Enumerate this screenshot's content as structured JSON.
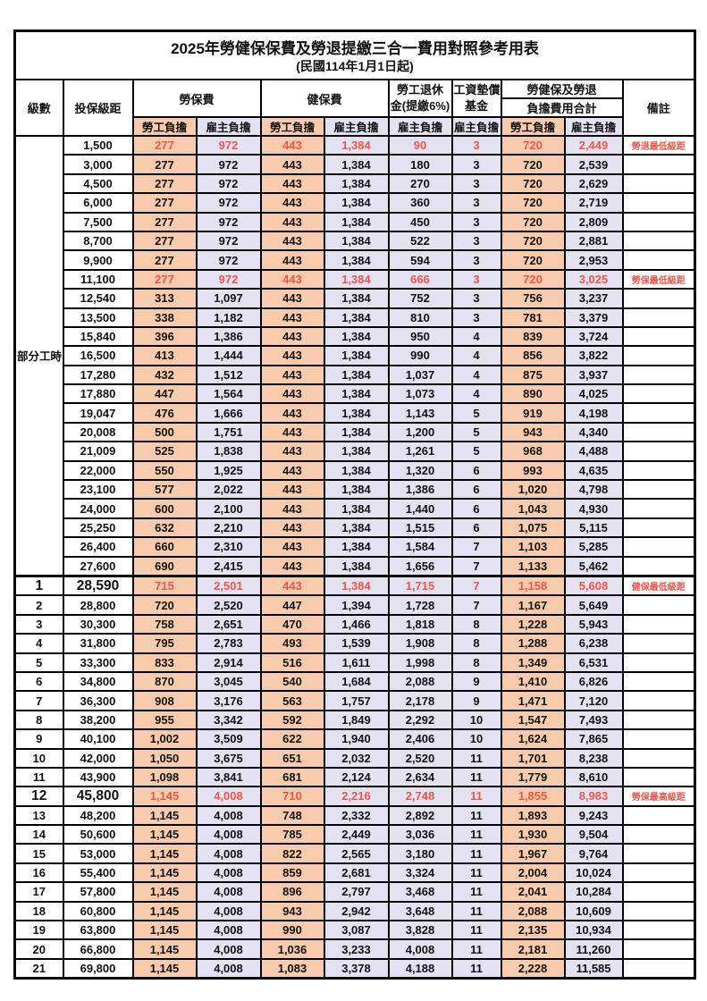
{
  "title": "2025年勞健保保費及勞退提繳三合一費用對照參考用表",
  "subtitle": "(民國114年1月1日起)",
  "colors": {
    "employee_bg": "#F8CBAD",
    "employer_bg": "#E4E2F2",
    "highlight_text": "#F25549",
    "border": "#000000"
  },
  "header": {
    "level": "級數",
    "bracket": "投保級距",
    "labor_insurance": "勞保費",
    "health_insurance": "健保費",
    "pension_line1": "勞工退休",
    "pension_line2": "金(提繳6%)",
    "wage_fund_line1": "工資墊償",
    "wage_fund_line2": "基金",
    "total_line1": "勞健保及勞退",
    "total_line2": "負擔費用合計",
    "employee_share": "勞工負擔",
    "employer_share": "雇主負擔",
    "remark": "備註"
  },
  "part_time": {
    "label": "部分工時",
    "span": 23
  },
  "rows": [
    {
      "level": "",
      "bracket": "1,500",
      "labor_emp": "277",
      "labor_er": "972",
      "health_emp": "443",
      "health_er": "1,384",
      "pension": "90",
      "wage_fund": "3",
      "total_emp": "720",
      "total_er": "2,449",
      "remark": "勞退最低級距",
      "red": true,
      "big": false,
      "sep": false
    },
    {
      "level": "",
      "bracket": "3,000",
      "labor_emp": "277",
      "labor_er": "972",
      "health_emp": "443",
      "health_er": "1,384",
      "pension": "180",
      "wage_fund": "3",
      "total_emp": "720",
      "total_er": "2,539",
      "remark": "",
      "red": false,
      "big": false,
      "sep": false
    },
    {
      "level": "",
      "bracket": "4,500",
      "labor_emp": "277",
      "labor_er": "972",
      "health_emp": "443",
      "health_er": "1,384",
      "pension": "270",
      "wage_fund": "3",
      "total_emp": "720",
      "total_er": "2,629",
      "remark": "",
      "red": false,
      "big": false,
      "sep": false
    },
    {
      "level": "",
      "bracket": "6,000",
      "labor_emp": "277",
      "labor_er": "972",
      "health_emp": "443",
      "health_er": "1,384",
      "pension": "360",
      "wage_fund": "3",
      "total_emp": "720",
      "total_er": "2,719",
      "remark": "",
      "red": false,
      "big": false,
      "sep": false
    },
    {
      "level": "",
      "bracket": "7,500",
      "labor_emp": "277",
      "labor_er": "972",
      "health_emp": "443",
      "health_er": "1,384",
      "pension": "450",
      "wage_fund": "3",
      "total_emp": "720",
      "total_er": "2,809",
      "remark": "",
      "red": false,
      "big": false,
      "sep": false
    },
    {
      "level": "",
      "bracket": "8,700",
      "labor_emp": "277",
      "labor_er": "972",
      "health_emp": "443",
      "health_er": "1,384",
      "pension": "522",
      "wage_fund": "3",
      "total_emp": "720",
      "total_er": "2,881",
      "remark": "",
      "red": false,
      "big": false,
      "sep": false
    },
    {
      "level": "",
      "bracket": "9,900",
      "labor_emp": "277",
      "labor_er": "972",
      "health_emp": "443",
      "health_er": "1,384",
      "pension": "594",
      "wage_fund": "3",
      "total_emp": "720",
      "total_er": "2,953",
      "remark": "",
      "red": false,
      "big": false,
      "sep": false
    },
    {
      "level": "",
      "bracket": "11,100",
      "labor_emp": "277",
      "labor_er": "972",
      "health_emp": "443",
      "health_er": "1,384",
      "pension": "666",
      "wage_fund": "3",
      "total_emp": "720",
      "total_er": "3,025",
      "remark": "勞保最低級距",
      "red": true,
      "big": false,
      "sep": false
    },
    {
      "level": "",
      "bracket": "12,540",
      "labor_emp": "313",
      "labor_er": "1,097",
      "health_emp": "443",
      "health_er": "1,384",
      "pension": "752",
      "wage_fund": "3",
      "total_emp": "756",
      "total_er": "3,237",
      "remark": "",
      "red": false,
      "big": false,
      "sep": false
    },
    {
      "level": "",
      "bracket": "13,500",
      "labor_emp": "338",
      "labor_er": "1,182",
      "health_emp": "443",
      "health_er": "1,384",
      "pension": "810",
      "wage_fund": "3",
      "total_emp": "781",
      "total_er": "3,379",
      "remark": "",
      "red": false,
      "big": false,
      "sep": false
    },
    {
      "level": "",
      "bracket": "15,840",
      "labor_emp": "396",
      "labor_er": "1,386",
      "health_emp": "443",
      "health_er": "1,384",
      "pension": "950",
      "wage_fund": "4",
      "total_emp": "839",
      "total_er": "3,724",
      "remark": "",
      "red": false,
      "big": false,
      "sep": false
    },
    {
      "level": "",
      "bracket": "16,500",
      "labor_emp": "413",
      "labor_er": "1,444",
      "health_emp": "443",
      "health_er": "1,384",
      "pension": "990",
      "wage_fund": "4",
      "total_emp": "856",
      "total_er": "3,822",
      "remark": "",
      "red": false,
      "big": false,
      "sep": false
    },
    {
      "level": "",
      "bracket": "17,280",
      "labor_emp": "432",
      "labor_er": "1,512",
      "health_emp": "443",
      "health_er": "1,384",
      "pension": "1,037",
      "wage_fund": "4",
      "total_emp": "875",
      "total_er": "3,937",
      "remark": "",
      "red": false,
      "big": false,
      "sep": false
    },
    {
      "level": "",
      "bracket": "17,880",
      "labor_emp": "447",
      "labor_er": "1,564",
      "health_emp": "443",
      "health_er": "1,384",
      "pension": "1,073",
      "wage_fund": "4",
      "total_emp": "890",
      "total_er": "4,025",
      "remark": "",
      "red": false,
      "big": false,
      "sep": false
    },
    {
      "level": "",
      "bracket": "19,047",
      "labor_emp": "476",
      "labor_er": "1,666",
      "health_emp": "443",
      "health_er": "1,384",
      "pension": "1,143",
      "wage_fund": "5",
      "total_emp": "919",
      "total_er": "4,198",
      "remark": "",
      "red": false,
      "big": false,
      "sep": false
    },
    {
      "level": "",
      "bracket": "20,008",
      "labor_emp": "500",
      "labor_er": "1,751",
      "health_emp": "443",
      "health_er": "1,384",
      "pension": "1,200",
      "wage_fund": "5",
      "total_emp": "943",
      "total_er": "4,340",
      "remark": "",
      "red": false,
      "big": false,
      "sep": false
    },
    {
      "level": "",
      "bracket": "21,009",
      "labor_emp": "525",
      "labor_er": "1,838",
      "health_emp": "443",
      "health_er": "1,384",
      "pension": "1,261",
      "wage_fund": "5",
      "total_emp": "968",
      "total_er": "4,488",
      "remark": "",
      "red": false,
      "big": false,
      "sep": false
    },
    {
      "level": "",
      "bracket": "22,000",
      "labor_emp": "550",
      "labor_er": "1,925",
      "health_emp": "443",
      "health_er": "1,384",
      "pension": "1,320",
      "wage_fund": "6",
      "total_emp": "993",
      "total_er": "4,635",
      "remark": "",
      "red": false,
      "big": false,
      "sep": false
    },
    {
      "level": "",
      "bracket": "23,100",
      "labor_emp": "577",
      "labor_er": "2,022",
      "health_emp": "443",
      "health_er": "1,384",
      "pension": "1,386",
      "wage_fund": "6",
      "total_emp": "1,020",
      "total_er": "4,798",
      "remark": "",
      "red": false,
      "big": false,
      "sep": false
    },
    {
      "level": "",
      "bracket": "24,000",
      "labor_emp": "600",
      "labor_er": "2,100",
      "health_emp": "443",
      "health_er": "1,384",
      "pension": "1,440",
      "wage_fund": "6",
      "total_emp": "1,043",
      "total_er": "4,930",
      "remark": "",
      "red": false,
      "big": false,
      "sep": false
    },
    {
      "level": "",
      "bracket": "25,250",
      "labor_emp": "632",
      "labor_er": "2,210",
      "health_emp": "443",
      "health_er": "1,384",
      "pension": "1,515",
      "wage_fund": "6",
      "total_emp": "1,075",
      "total_er": "5,115",
      "remark": "",
      "red": false,
      "big": false,
      "sep": false
    },
    {
      "level": "",
      "bracket": "26,400",
      "labor_emp": "660",
      "labor_er": "2,310",
      "health_emp": "443",
      "health_er": "1,384",
      "pension": "1,584",
      "wage_fund": "7",
      "total_emp": "1,103",
      "total_er": "5,285",
      "remark": "",
      "red": false,
      "big": false,
      "sep": false
    },
    {
      "level": "",
      "bracket": "27,600",
      "labor_emp": "690",
      "labor_er": "2,415",
      "health_emp": "443",
      "health_er": "1,384",
      "pension": "1,656",
      "wage_fund": "7",
      "total_emp": "1,133",
      "total_er": "5,462",
      "remark": "",
      "red": false,
      "big": false,
      "sep": false
    },
    {
      "level": "1",
      "bracket": "28,590",
      "labor_emp": "715",
      "labor_er": "2,501",
      "health_emp": "443",
      "health_er": "1,384",
      "pension": "1,715",
      "wage_fund": "7",
      "total_emp": "1,158",
      "total_er": "5,608",
      "remark": "健保最低級距",
      "red": true,
      "big": true,
      "sep": true
    },
    {
      "level": "2",
      "bracket": "28,800",
      "labor_emp": "720",
      "labor_er": "2,520",
      "health_emp": "447",
      "health_er": "1,394",
      "pension": "1,728",
      "wage_fund": "7",
      "total_emp": "1,167",
      "total_er": "5,649",
      "remark": "",
      "red": false,
      "big": false,
      "sep": false
    },
    {
      "level": "3",
      "bracket": "30,300",
      "labor_emp": "758",
      "labor_er": "2,651",
      "health_emp": "470",
      "health_er": "1,466",
      "pension": "1,818",
      "wage_fund": "8",
      "total_emp": "1,228",
      "total_er": "5,943",
      "remark": "",
      "red": false,
      "big": false,
      "sep": false
    },
    {
      "level": "4",
      "bracket": "31,800",
      "labor_emp": "795",
      "labor_er": "2,783",
      "health_emp": "493",
      "health_er": "1,539",
      "pension": "1,908",
      "wage_fund": "8",
      "total_emp": "1,288",
      "total_er": "6,238",
      "remark": "",
      "red": false,
      "big": false,
      "sep": false
    },
    {
      "level": "5",
      "bracket": "33,300",
      "labor_emp": "833",
      "labor_er": "2,914",
      "health_emp": "516",
      "health_er": "1,611",
      "pension": "1,998",
      "wage_fund": "8",
      "total_emp": "1,349",
      "total_er": "6,531",
      "remark": "",
      "red": false,
      "big": false,
      "sep": false
    },
    {
      "level": "6",
      "bracket": "34,800",
      "labor_emp": "870",
      "labor_er": "3,045",
      "health_emp": "540",
      "health_er": "1,684",
      "pension": "2,088",
      "wage_fund": "9",
      "total_emp": "1,410",
      "total_er": "6,826",
      "remark": "",
      "red": false,
      "big": false,
      "sep": false
    },
    {
      "level": "7",
      "bracket": "36,300",
      "labor_emp": "908",
      "labor_er": "3,176",
      "health_emp": "563",
      "health_er": "1,757",
      "pension": "2,178",
      "wage_fund": "9",
      "total_emp": "1,471",
      "total_er": "7,120",
      "remark": "",
      "red": false,
      "big": false,
      "sep": false
    },
    {
      "level": "8",
      "bracket": "38,200",
      "labor_emp": "955",
      "labor_er": "3,342",
      "health_emp": "592",
      "health_er": "1,849",
      "pension": "2,292",
      "wage_fund": "10",
      "total_emp": "1,547",
      "total_er": "7,493",
      "remark": "",
      "red": false,
      "big": false,
      "sep": false
    },
    {
      "level": "9",
      "bracket": "40,100",
      "labor_emp": "1,002",
      "labor_er": "3,509",
      "health_emp": "622",
      "health_er": "1,940",
      "pension": "2,406",
      "wage_fund": "10",
      "total_emp": "1,624",
      "total_er": "7,865",
      "remark": "",
      "red": false,
      "big": false,
      "sep": false
    },
    {
      "level": "10",
      "bracket": "42,000",
      "labor_emp": "1,050",
      "labor_er": "3,675",
      "health_emp": "651",
      "health_er": "2,032",
      "pension": "2,520",
      "wage_fund": "11",
      "total_emp": "1,701",
      "total_er": "8,238",
      "remark": "",
      "red": false,
      "big": false,
      "sep": false
    },
    {
      "level": "11",
      "bracket": "43,900",
      "labor_emp": "1,098",
      "labor_er": "3,841",
      "health_emp": "681",
      "health_er": "2,124",
      "pension": "2,634",
      "wage_fund": "11",
      "total_emp": "1,779",
      "total_er": "8,610",
      "remark": "",
      "red": false,
      "big": false,
      "sep": false
    },
    {
      "level": "12",
      "bracket": "45,800",
      "labor_emp": "1,145",
      "labor_er": "4,008",
      "health_emp": "710",
      "health_er": "2,216",
      "pension": "2,748",
      "wage_fund": "11",
      "total_emp": "1,855",
      "total_er": "8,983",
      "remark": "勞保最高級距",
      "red": true,
      "big": true,
      "sep": false
    },
    {
      "level": "13",
      "bracket": "48,200",
      "labor_emp": "1,145",
      "labor_er": "4,008",
      "health_emp": "748",
      "health_er": "2,332",
      "pension": "2,892",
      "wage_fund": "11",
      "total_emp": "1,893",
      "total_er": "9,243",
      "remark": "",
      "red": false,
      "big": false,
      "sep": false
    },
    {
      "level": "14",
      "bracket": "50,600",
      "labor_emp": "1,145",
      "labor_er": "4,008",
      "health_emp": "785",
      "health_er": "2,449",
      "pension": "3,036",
      "wage_fund": "11",
      "total_emp": "1,930",
      "total_er": "9,504",
      "remark": "",
      "red": false,
      "big": false,
      "sep": false
    },
    {
      "level": "15",
      "bracket": "53,000",
      "labor_emp": "1,145",
      "labor_er": "4,008",
      "health_emp": "822",
      "health_er": "2,565",
      "pension": "3,180",
      "wage_fund": "11",
      "total_emp": "1,967",
      "total_er": "9,764",
      "remark": "",
      "red": false,
      "big": false,
      "sep": false
    },
    {
      "level": "16",
      "bracket": "55,400",
      "labor_emp": "1,145",
      "labor_er": "4,008",
      "health_emp": "859",
      "health_er": "2,681",
      "pension": "3,324",
      "wage_fund": "11",
      "total_emp": "2,004",
      "total_er": "10,024",
      "remark": "",
      "red": false,
      "big": false,
      "sep": false
    },
    {
      "level": "17",
      "bracket": "57,800",
      "labor_emp": "1,145",
      "labor_er": "4,008",
      "health_emp": "896",
      "health_er": "2,797",
      "pension": "3,468",
      "wage_fund": "11",
      "total_emp": "2,041",
      "total_er": "10,284",
      "remark": "",
      "red": false,
      "big": false,
      "sep": false
    },
    {
      "level": "18",
      "bracket": "60,800",
      "labor_emp": "1,145",
      "labor_er": "4,008",
      "health_emp": "943",
      "health_er": "2,942",
      "pension": "3,648",
      "wage_fund": "11",
      "total_emp": "2,088",
      "total_er": "10,609",
      "remark": "",
      "red": false,
      "big": false,
      "sep": false
    },
    {
      "level": "19",
      "bracket": "63,800",
      "labor_emp": "1,145",
      "labor_er": "4,008",
      "health_emp": "990",
      "health_er": "3,087",
      "pension": "3,828",
      "wage_fund": "11",
      "total_emp": "2,135",
      "total_er": "10,934",
      "remark": "",
      "red": false,
      "big": false,
      "sep": false
    },
    {
      "level": "20",
      "bracket": "66,800",
      "labor_emp": "1,145",
      "labor_er": "4,008",
      "health_emp": "1,036",
      "health_er": "3,233",
      "pension": "4,008",
      "wage_fund": "11",
      "total_emp": "2,181",
      "total_er": "11,260",
      "remark": "",
      "red": false,
      "big": false,
      "sep": false
    },
    {
      "level": "21",
      "bracket": "69,800",
      "labor_emp": "1,145",
      "labor_er": "4,008",
      "health_emp": "1,083",
      "health_er": "3,378",
      "pension": "4,188",
      "wage_fund": "11",
      "total_emp": "2,228",
      "total_er": "11,585",
      "remark": "",
      "red": false,
      "big": false,
      "sep": false
    }
  ]
}
